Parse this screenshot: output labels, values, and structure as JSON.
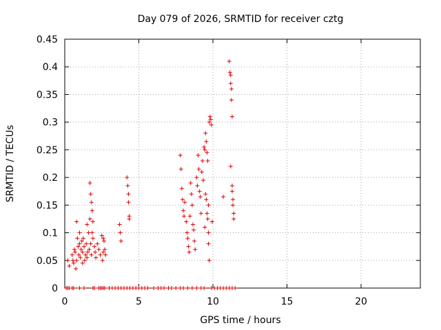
{
  "chart_data": {
    "type": "scatter",
    "title": "Day 079 of 2026, SRMTID for receiver cztg",
    "xlabel": "GPS time / hours",
    "ylabel": "SRMTID / TECUs",
    "xlim": [
      0,
      24
    ],
    "ylim": [
      0,
      0.45
    ],
    "xticks": [
      0,
      5,
      10,
      15,
      20
    ],
    "xtick_labels": [
      "0",
      "5",
      "10",
      "15",
      "20"
    ],
    "yticks": [
      0,
      0.05,
      0.1,
      0.15,
      0.2,
      0.25,
      0.3,
      0.35,
      0.4,
      0.45
    ],
    "ytick_labels": [
      "0",
      "0.05",
      "0.1",
      "0.15",
      "0.2",
      "0.25",
      "0.3",
      "0.35",
      "0.4",
      "0.45"
    ],
    "grid": true,
    "marker": "+",
    "color": "#dd0000",
    "series": [
      {
        "name": "SRMTID",
        "points": [
          [
            0.1,
            0
          ],
          [
            0.2,
            0
          ],
          [
            0.3,
            0
          ],
          [
            0.5,
            0
          ],
          [
            0.6,
            0
          ],
          [
            1.0,
            0
          ],
          [
            1.3,
            0
          ],
          [
            1.9,
            0
          ],
          [
            2.0,
            0
          ],
          [
            2.3,
            0
          ],
          [
            2.4,
            0
          ],
          [
            2.5,
            0
          ],
          [
            2.6,
            0
          ],
          [
            2.7,
            0
          ],
          [
            3.0,
            0
          ],
          [
            3.2,
            0
          ],
          [
            3.4,
            0
          ],
          [
            3.6,
            0
          ],
          [
            3.8,
            0
          ],
          [
            4.0,
            0
          ],
          [
            4.2,
            0
          ],
          [
            4.4,
            0
          ],
          [
            4.6,
            0
          ],
          [
            4.8,
            0
          ],
          [
            5.0,
            0
          ],
          [
            5.2,
            0
          ],
          [
            5.4,
            0
          ],
          [
            5.6,
            0
          ],
          [
            6.0,
            0
          ],
          [
            6.3,
            0
          ],
          [
            6.5,
            0
          ],
          [
            6.7,
            0
          ],
          [
            7.0,
            0
          ],
          [
            7.2,
            0
          ],
          [
            7.5,
            0
          ],
          [
            7.8,
            0
          ],
          [
            8.0,
            0
          ],
          [
            8.3,
            0
          ],
          [
            8.6,
            0
          ],
          [
            8.9,
            0
          ],
          [
            9.2,
            0
          ],
          [
            9.4,
            0
          ],
          [
            9.9,
            0
          ],
          [
            10.1,
            0
          ],
          [
            10.3,
            0
          ],
          [
            10.5,
            0
          ],
          [
            10.7,
            0
          ],
          [
            10.9,
            0
          ],
          [
            11.1,
            0
          ],
          [
            11.3,
            0
          ],
          [
            11.5,
            0
          ],
          [
            0.2,
            0.05
          ],
          [
            0.3,
            0.04
          ],
          [
            0.5,
            0.06
          ],
          [
            0.55,
            0.05
          ],
          [
            0.6,
            0.045
          ],
          [
            0.65,
            0.07
          ],
          [
            0.7,
            0.065
          ],
          [
            0.75,
            0.035
          ],
          [
            0.8,
            0.12
          ],
          [
            0.8,
            0.05
          ],
          [
            0.85,
            0.09
          ],
          [
            0.9,
            0.075
          ],
          [
            0.95,
            0.06
          ],
          [
            1.0,
            0.1
          ],
          [
            1.0,
            0.08
          ],
          [
            1.05,
            0.055
          ],
          [
            1.1,
            0.07
          ],
          [
            1.15,
            0.085
          ],
          [
            1.2,
            0.045
          ],
          [
            1.2,
            0.065
          ],
          [
            1.25,
            0.09
          ],
          [
            1.3,
            0.075
          ],
          [
            1.35,
            0.05
          ],
          [
            1.4,
            0.06
          ],
          [
            1.45,
            0.08
          ],
          [
            1.5,
            0.115
          ],
          [
            1.5,
            0.055
          ],
          [
            1.55,
            0.065
          ],
          [
            1.6,
            0.1
          ],
          [
            1.65,
            0.07
          ],
          [
            1.7,
            0.125
          ],
          [
            1.7,
            0.19
          ],
          [
            1.75,
            0.17
          ],
          [
            1.75,
            0.08
          ],
          [
            1.8,
            0.155
          ],
          [
            1.8,
            0.06
          ],
          [
            1.85,
            0.14
          ],
          [
            1.85,
            0.1
          ],
          [
            1.9,
            0.12
          ],
          [
            1.9,
            0.09
          ],
          [
            2.0,
            0.075
          ],
          [
            2.05,
            0.065
          ],
          [
            2.1,
            0.055
          ],
          [
            2.2,
            0.08
          ],
          [
            2.3,
            0.07
          ],
          [
            2.4,
            0.06
          ],
          [
            2.5,
            0.095
          ],
          [
            2.55,
            0.05
          ],
          [
            2.6,
            0.09
          ],
          [
            2.6,
            0.065
          ],
          [
            2.65,
            0.085
          ],
          [
            2.7,
            0.07
          ],
          [
            2.75,
            0.06
          ],
          [
            3.7,
            0.115
          ],
          [
            3.75,
            0.1
          ],
          [
            3.8,
            0.085
          ],
          [
            4.2,
            0.2
          ],
          [
            4.25,
            0.185
          ],
          [
            4.3,
            0.17
          ],
          [
            4.3,
            0.155
          ],
          [
            4.35,
            0.13
          ],
          [
            4.35,
            0.125
          ],
          [
            7.8,
            0.24
          ],
          [
            7.85,
            0.215
          ],
          [
            7.9,
            0.18
          ],
          [
            7.95,
            0.16
          ],
          [
            8.0,
            0.14
          ],
          [
            8.05,
            0.13
          ],
          [
            8.1,
            0.155
          ],
          [
            8.2,
            0.12
          ],
          [
            8.25,
            0.1
          ],
          [
            8.3,
            0.09
          ],
          [
            8.35,
            0.075
          ],
          [
            8.4,
            0.065
          ],
          [
            8.45,
            0.13
          ],
          [
            8.5,
            0.19
          ],
          [
            8.55,
            0.17
          ],
          [
            8.6,
            0.15
          ],
          [
            8.65,
            0.115
          ],
          [
            8.7,
            0.105
          ],
          [
            8.75,
            0.085
          ],
          [
            8.8,
            0.07
          ],
          [
            8.9,
            0.2
          ],
          [
            8.95,
            0.185
          ],
          [
            9.0,
            0.24
          ],
          [
            9.05,
            0.215
          ],
          [
            9.1,
            0.175
          ],
          [
            9.15,
            0.165
          ],
          [
            9.2,
            0.135
          ],
          [
            9.25,
            0.21
          ],
          [
            9.3,
            0.23
          ],
          [
            9.35,
            0.195
          ],
          [
            9.4,
            0.255
          ],
          [
            9.45,
            0.25
          ],
          [
            9.45,
            0.11
          ],
          [
            9.5,
            0.28
          ],
          [
            9.5,
            0.17
          ],
          [
            9.55,
            0.265
          ],
          [
            9.55,
            0.16
          ],
          [
            9.6,
            0.245
          ],
          [
            9.6,
            0.135
          ],
          [
            9.65,
            0.23
          ],
          [
            9.65,
            0.125
          ],
          [
            9.7,
            0.15
          ],
          [
            9.7,
            0.1
          ],
          [
            9.7,
            0.08
          ],
          [
            9.75,
            0.3
          ],
          [
            9.75,
            0.05
          ],
          [
            9.8,
            0.31
          ],
          [
            9.85,
            0.305
          ],
          [
            9.9,
            0.295
          ],
          [
            9.95,
            0.12
          ],
          [
            10.7,
            0.165
          ],
          [
            11.1,
            0.41
          ],
          [
            11.15,
            0.39
          ],
          [
            11.2,
            0.37
          ],
          [
            11.2,
            0.22
          ],
          [
            11.25,
            0.36
          ],
          [
            11.25,
            0.34
          ],
          [
            11.3,
            0.31
          ],
          [
            11.3,
            0.185
          ],
          [
            11.3,
            0.175
          ],
          [
            11.35,
            0.16
          ],
          [
            11.35,
            0.15
          ],
          [
            11.4,
            0.135
          ],
          [
            11.4,
            0.125
          ],
          [
            11.2,
            0.385
          ]
        ]
      }
    ]
  }
}
